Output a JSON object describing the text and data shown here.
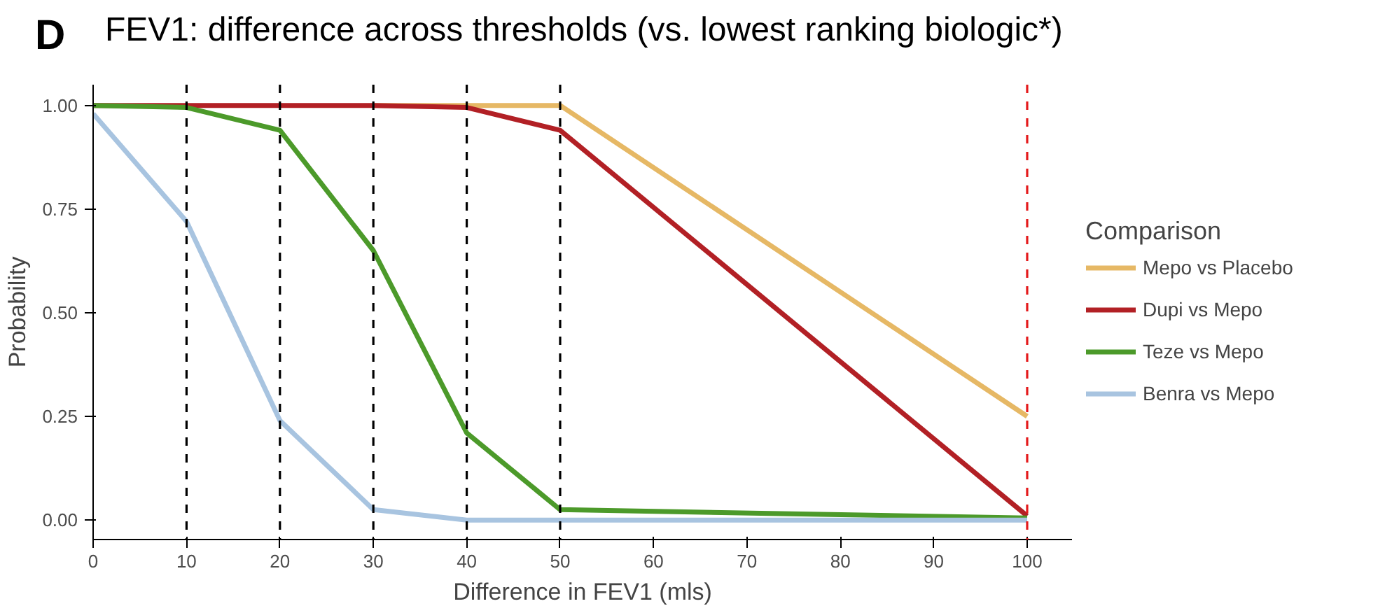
{
  "chart_data": {
    "type": "line",
    "title": "FEV1: difference across thresholds (vs. lowest ranking biologic*)",
    "annotations": [
      "D"
    ],
    "xlabel": "Difference in FEV1 (mls)",
    "ylabel": "Probability",
    "legend_title": "Comparison",
    "legend": "right",
    "grid": false,
    "line_style": "solid",
    "marker": "none",
    "x": [
      0,
      10,
      20,
      30,
      40,
      50,
      100
    ],
    "xlim": [
      0,
      104.8
    ],
    "xticks": [
      0,
      10,
      20,
      30,
      40,
      50,
      60,
      70,
      80,
      90,
      100
    ],
    "ylim": [
      -0.047,
      1.05
    ],
    "yticks": [
      {
        "value": 0,
        "label": "0.00"
      },
      {
        "value": 0.25,
        "label": "0.25"
      },
      {
        "value": 0.5,
        "label": "0.50"
      },
      {
        "value": 0.75,
        "label": "0.75"
      },
      {
        "value": 1,
        "label": "1.00"
      }
    ],
    "series": [
      {
        "name": "Mepo vs Placebo",
        "color": "#e6b865",
        "values": [
          null,
          null,
          null,
          1,
          1,
          1,
          0.25
        ]
      },
      {
        "name": "Dupi vs Mepo",
        "color": "#b22025",
        "values": [
          1,
          1,
          1,
          1,
          0.995,
          0.94,
          0.01
        ]
      },
      {
        "name": "Teze vs Mepo",
        "color": "#4c9a2a",
        "values": [
          1,
          0.995,
          0.94,
          0.65,
          0.21,
          0.025,
          0.005
        ]
      },
      {
        "name": "Benra vs Mepo",
        "color": "#a8c4e0",
        "values": [
          0.98,
          0.72,
          0.24,
          0.025,
          0,
          0,
          0
        ]
      }
    ],
    "ref_lines": [
      {
        "axis": "x",
        "value": 10,
        "color": "#000000",
        "line_style": "dashed"
      },
      {
        "axis": "x",
        "value": 20,
        "color": "#000000",
        "line_style": "dashed"
      },
      {
        "axis": "x",
        "value": 30,
        "color": "#000000",
        "line_style": "dashed"
      },
      {
        "axis": "x",
        "value": 40,
        "color": "#000000",
        "line_style": "dashed"
      },
      {
        "axis": "x",
        "value": 50,
        "color": "#000000",
        "line_style": "dashed"
      },
      {
        "axis": "x",
        "value": 100,
        "color": "#e41a1c",
        "line_style": "dashed"
      }
    ]
  }
}
